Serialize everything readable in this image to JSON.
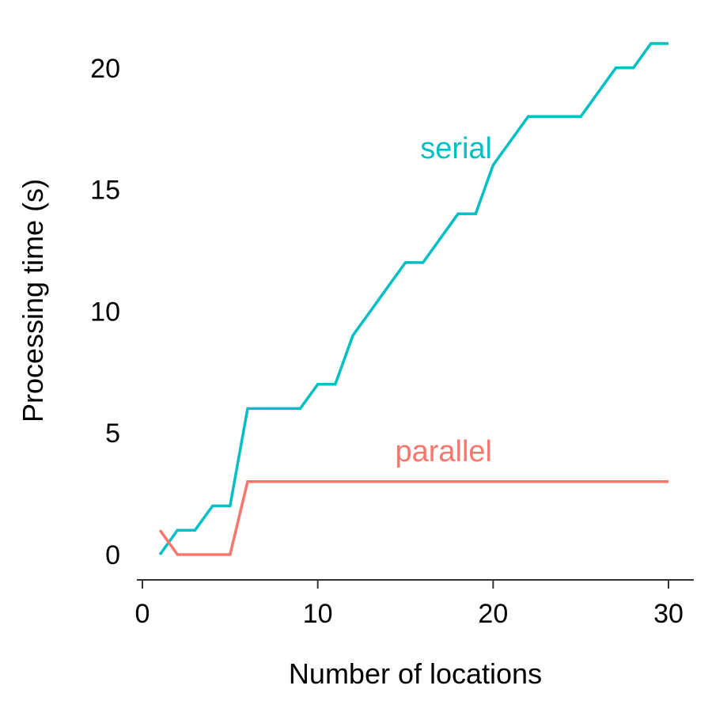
{
  "chart_data": {
    "type": "line",
    "title": "",
    "xlabel": "Number of locations",
    "ylabel": "Processing time (s)",
    "xlim": [
      0,
      30
    ],
    "ylim": [
      0,
      21
    ],
    "x_ticks": [
      0,
      10,
      20,
      30
    ],
    "y_ticks": [
      0,
      5,
      10,
      15,
      20
    ],
    "grid": false,
    "legend": "none",
    "series": [
      {
        "name": "serial",
        "color": "#00BFC4",
        "x": [
          1,
          2,
          3,
          4,
          5,
          6,
          7,
          8,
          9,
          10,
          11,
          12,
          13,
          14,
          15,
          16,
          17,
          18,
          19,
          20,
          21,
          22,
          23,
          24,
          25,
          26,
          27,
          28,
          29,
          30
        ],
        "values": [
          0,
          1,
          1,
          2,
          2,
          6,
          6,
          6,
          6,
          7,
          7,
          9,
          10,
          11,
          12,
          12,
          13,
          14,
          14,
          16,
          17,
          18,
          18,
          18,
          18,
          19,
          20,
          20,
          21,
          21
        ]
      },
      {
        "name": "parallel",
        "color": "#F8766D",
        "x": [
          1,
          2,
          3,
          4,
          5,
          6,
          7,
          8,
          9,
          10,
          11,
          12,
          13,
          14,
          15,
          16,
          17,
          18,
          19,
          20,
          21,
          22,
          23,
          24,
          25,
          26,
          27,
          28,
          29,
          30
        ],
        "values": [
          1,
          0,
          0,
          0,
          0,
          3,
          3,
          3,
          3,
          3,
          3,
          3,
          3,
          3,
          3,
          3,
          3,
          3,
          3,
          3,
          3,
          3,
          3,
          3,
          3,
          3,
          3,
          3,
          3,
          3
        ]
      }
    ]
  }
}
